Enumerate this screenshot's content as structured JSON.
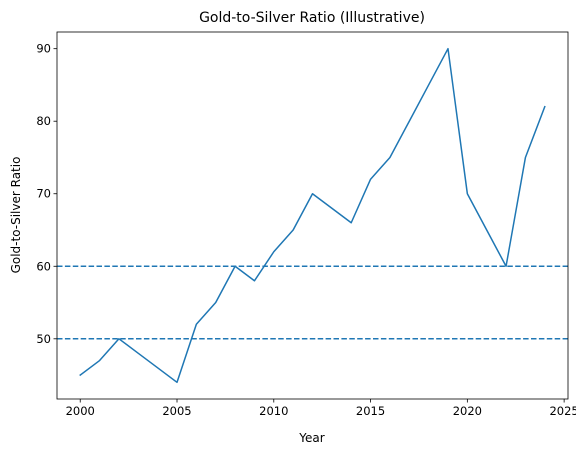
{
  "chart_data": {
    "type": "line",
    "title": "Gold-to-Silver Ratio (Illustrative)",
    "xlabel": "Year",
    "ylabel": "Gold-to-Silver Ratio",
    "xlim": [
      1998.8,
      2025.2
    ],
    "ylim": [
      41.7,
      92.3
    ],
    "xticks": [
      2000,
      2005,
      2010,
      2015,
      2020,
      2025
    ],
    "yticks": [
      50,
      60,
      70,
      80,
      90
    ],
    "grid": false,
    "series": [
      {
        "color": "#1f77b4",
        "x": [
          2000,
          2001,
          2002,
          2003,
          2004,
          2005,
          2006,
          2007,
          2008,
          2009,
          2010,
          2011,
          2012,
          2013,
          2014,
          2015,
          2016,
          2017,
          2018,
          2019,
          2020,
          2021,
          2022,
          2023,
          2024
        ],
        "y": [
          45,
          47,
          50,
          48,
          46,
          44,
          52,
          55,
          60,
          58,
          62,
          65,
          70,
          68,
          66,
          72,
          75,
          80,
          85,
          90,
          70,
          65,
          60,
          75,
          82
        ]
      }
    ],
    "reference_lines": [
      {
        "y": 60,
        "style": "dashed",
        "color": "#1f77b4"
      },
      {
        "y": 50,
        "style": "dashed",
        "color": "#1f77b4"
      }
    ]
  }
}
